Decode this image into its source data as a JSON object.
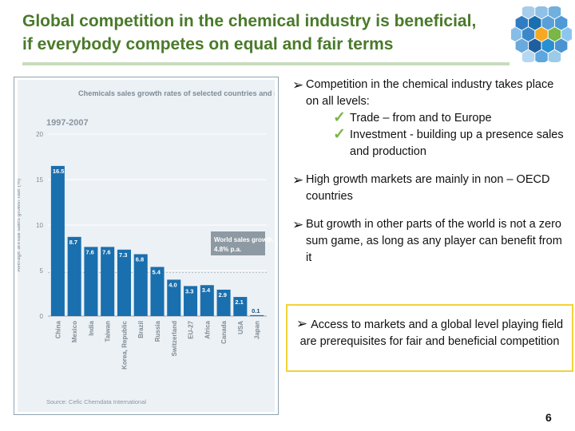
{
  "slide": {
    "title_line1": "Global competition in the chemical industry is beneficial,",
    "title_line2": "if everybody competes on equal and fair terms",
    "page_number": "6",
    "accent_color": "#4a7a2a",
    "callout_border_color": "#f2d23a"
  },
  "bullets": [
    {
      "text": "Competition in the chemical industry takes place on all levels:",
      "sub": [
        {
          "text": "Trade – from and to Europe"
        },
        {
          "text": "Investment  - building up a presence sales and production"
        }
      ]
    },
    {
      "text": "High growth markets are mainly in non – OECD countries",
      "sub": []
    },
    {
      "text": "But growth in other parts of the world is not a zero sum game, as long as any player can benefit from it",
      "sub": []
    }
  ],
  "callout": {
    "text": "Access to markets and a global level playing field are prerequisites for fair and beneficial competition"
  },
  "chart_data": {
    "type": "bar",
    "title": "Chemicals sales growth rates of selected countries and regions",
    "period": "1997-2007",
    "ylabel": "Average annual sales growth rate (%)",
    "xlabel": "",
    "ylim": [
      0,
      20
    ],
    "yticks": [
      0,
      5,
      10,
      15,
      20
    ],
    "categories": [
      "China",
      "Mexico",
      "India",
      "Taiwan",
      "Korea, Republic",
      "Brazil",
      "Russia",
      "Switzerland",
      "EU-27",
      "Africa",
      "Canada",
      "USA",
      "Japan"
    ],
    "values": [
      16.5,
      8.7,
      7.6,
      7.6,
      7.3,
      6.8,
      5.4,
      4.0,
      3.3,
      3.4,
      2.9,
      2.1,
      0.1
    ],
    "labels": [
      "16.5",
      "8.7",
      "7.6",
      "7.6",
      "7.3",
      "6.8",
      "5.4",
      "4.0",
      "3.3",
      "3.4",
      "2.9",
      "2.1",
      "0.1"
    ],
    "bar_color": "#1a6fae",
    "world_growth_label_line1": "World sales growth",
    "world_growth_label_line2": "4.8% p.a.",
    "world_growth_value": 4.8,
    "source": "Source: Cefic Chemdata International"
  }
}
